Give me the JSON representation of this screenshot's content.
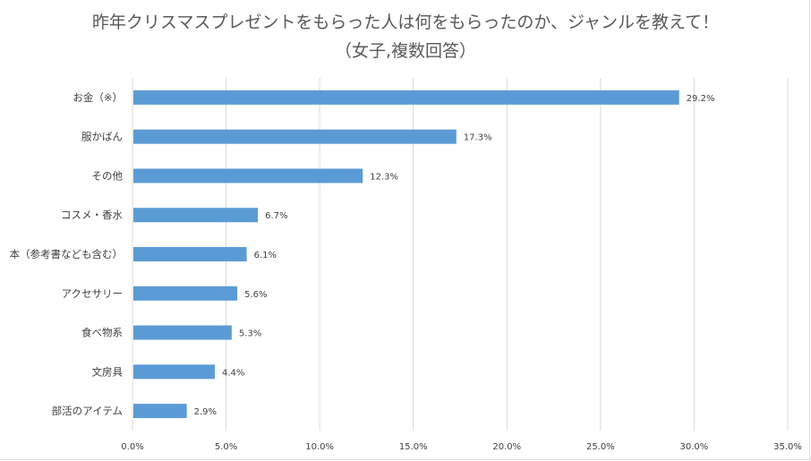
{
  "chart_data": {
    "type": "bar",
    "orientation": "horizontal",
    "title": "昨年クリスマスプレゼントをもらった人は何をもらったのか、ジャンルを教えて！",
    "subtitle": "（女子,複数回答）",
    "categories": [
      "お金（※）",
      "服かばん",
      "その他",
      "コスメ・香水",
      "本（参考書なども含む）",
      "アクセサリー",
      "食べ物系",
      "文房具",
      "部活のアイテム"
    ],
    "values": [
      29.2,
      17.3,
      12.3,
      6.7,
      6.1,
      5.6,
      5.3,
      4.4,
      2.9
    ],
    "data_labels": [
      "29.2%",
      "17.3%",
      "12.3%",
      "6.7%",
      "6.1%",
      "5.6%",
      "5.3%",
      "4.4%",
      "2.9%"
    ],
    "x_ticks": [
      "0.0%",
      "5.0%",
      "10.0%",
      "15.0%",
      "20.0%",
      "25.0%",
      "30.0%",
      "35.0%"
    ],
    "xlim": [
      0,
      35
    ],
    "grid": true,
    "legend": "none",
    "bar_color": "#5b9bd5",
    "grid_color": "#d9d9d9"
  }
}
